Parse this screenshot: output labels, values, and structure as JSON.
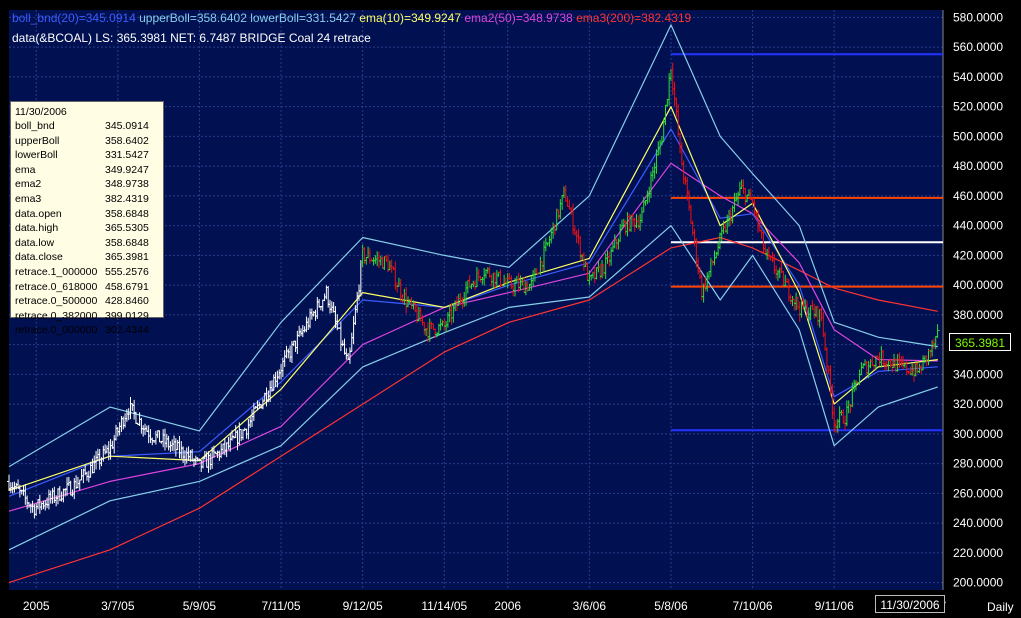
{
  "header": {
    "line1": [
      {
        "text": "boll_bnd(20)=345.0914",
        "color": "#3b5bff"
      },
      {
        "text": " upperBoll=358.6402",
        "color": "#87ceeb"
      },
      {
        "text": " lowerBoll=331.5427",
        "color": "#87ceeb"
      },
      {
        "text": " ema(10)=349.9247",
        "color": "#ffff66"
      },
      {
        "text": " ema2(50)=348.9738",
        "color": "#dd44dd"
      },
      {
        "text": " ema3(200)=382.4319",
        "color": "#ff3333"
      }
    ],
    "line2": "data(&BCOAL) LS: 365.3981  NET: 6.7487   BRIDGE Coal          24 retrace"
  },
  "tooltip": {
    "date": "11/30/2006",
    "rows": [
      {
        "k": "boll_bnd",
        "v": "345.0914"
      },
      {
        "k": "upperBoll",
        "v": "358.6402"
      },
      {
        "k": "lowerBoll",
        "v": "331.5427"
      },
      {
        "k": "ema",
        "v": "349.9247"
      },
      {
        "k": "ema2",
        "v": "348.9738"
      },
      {
        "k": "ema3",
        "v": "382.4319"
      },
      {
        "k": "data.open",
        "v": "358.6848"
      },
      {
        "k": "data.high",
        "v": "365.5305"
      },
      {
        "k": "data.low",
        "v": "358.6848"
      },
      {
        "k": "data.close",
        "v": "365.3981"
      },
      {
        "k": "retrace.1_000000",
        "v": "555.2576"
      },
      {
        "k": "retrace.0_618000",
        "v": "458.6791"
      },
      {
        "k": "retrace.0_500000",
        "v": "428.8460"
      },
      {
        "k": "retrace.0_382000",
        "v": "399.0129"
      },
      {
        "k": "retrace.0_000000",
        "v": "302.4344"
      }
    ]
  },
  "last_value": "365.3981",
  "cursor_date": "11/30/2006",
  "period_label": "Daily",
  "colors": {
    "background": "#000000",
    "plot_background": "#001050",
    "grid": "#2a3c8a",
    "bars_up": "#33dd33",
    "bars_down": "#ee1111",
    "bars_early": "#ffffff",
    "boll_mid": "#3b5bff",
    "boll_bands": "#87ceeb",
    "ema10": "#ffff66",
    "ema50": "#dd44dd",
    "ema200": "#ff3333",
    "retrace_extremes": "#2233ff",
    "retrace_mid": "#ffffff",
    "retrace_fib": "#ff4400"
  },
  "chart_data": {
    "type": "line",
    "title": "",
    "xlabel": "",
    "ylabel": "",
    "ylim": [
      195,
      585
    ],
    "grid": true,
    "y_ticks": [
      "580.0000",
      "560.0000",
      "540.0000",
      "520.0000",
      "500.0000",
      "480.0000",
      "460.0000",
      "440.0000",
      "420.0000",
      "400.0000",
      "380.0000",
      "360.0000",
      "340.0000",
      "320.0000",
      "300.0000",
      "280.0000",
      "260.0000",
      "240.0000",
      "220.0000",
      "200.0000"
    ],
    "x_ticks": [
      "2005",
      "3/7/05",
      "5/9/05",
      "7/11/05",
      "9/12/05",
      "11/14/05",
      "2006",
      "3/6/06",
      "5/8/06",
      "7/10/06",
      "9/11/06"
    ],
    "retracement_levels": [
      {
        "name": "retrace.1_000000",
        "value": 555.2576
      },
      {
        "name": "retrace.0_618000",
        "value": 458.6791
      },
      {
        "name": "retrace.0_500000",
        "value": 428.846
      },
      {
        "name": "retrace.0_382000",
        "value": 399.0129
      },
      {
        "name": "retrace.0_000000",
        "value": 302.4344
      }
    ],
    "series": [
      {
        "name": "data",
        "x": [
          "12/13/04",
          "1/1/05",
          "2/1/05",
          "3/1/05",
          "3/15/05",
          "4/1/05",
          "5/1/05",
          "5/9/05",
          "6/1/05",
          "6/15/05",
          "7/11/05",
          "8/1/05",
          "8/15/05",
          "9/1/05",
          "9/12/05",
          "10/1/05",
          "10/15/05",
          "11/1/05",
          "11/14/05",
          "12/1/05",
          "12/15/05",
          "1/3/06",
          "1/20/06",
          "2/1/06",
          "2/15/06",
          "3/6/06",
          "3/20/06",
          "4/1/06",
          "4/15/06",
          "5/1/06",
          "5/8/06",
          "5/15/06",
          "6/1/06",
          "6/15/06",
          "7/1/06",
          "7/10/06",
          "7/20/06",
          "8/1/06",
          "8/15/06",
          "9/1/06",
          "9/11/06",
          "9/20/06",
          "10/1/06",
          "10/15/06",
          "11/1/06",
          "11/15/06",
          "11/30/06"
        ],
        "values": [
          268,
          250,
          265,
          290,
          318,
          300,
          285,
          278,
          292,
          305,
          345,
          375,
          395,
          345,
          420,
          415,
          390,
          370,
          372,
          398,
          410,
          400,
          400,
          425,
          462,
          402,
          415,
          440,
          445,
          500,
          548,
          490,
          395,
          430,
          465,
          455,
          420,
          405,
          385,
          380,
          308,
          312,
          342,
          352,
          345,
          342,
          365
        ]
      },
      {
        "name": "ema(10)",
        "x": [
          "12/13/04",
          "3/1/05",
          "5/9/05",
          "7/11/05",
          "9/12/05",
          "11/14/05",
          "1/3/06",
          "3/6/06",
          "5/8/06",
          "6/15/06",
          "7/10/06",
          "8/15/06",
          "9/11/06",
          "10/15/06",
          "11/30/06"
        ],
        "values": [
          262,
          285,
          282,
          330,
          395,
          385,
          402,
          418,
          520,
          440,
          455,
          395,
          320,
          345,
          349.9247
        ]
      },
      {
        "name": "ema2(50)",
        "x": [
          "12/13/04",
          "3/1/05",
          "5/9/05",
          "7/11/05",
          "9/12/05",
          "11/14/05",
          "1/3/06",
          "3/6/06",
          "5/8/06",
          "6/15/06",
          "7/10/06",
          "8/15/06",
          "9/11/06",
          "10/15/06",
          "11/30/06"
        ],
        "values": [
          248,
          268,
          280,
          305,
          360,
          385,
          395,
          408,
          482,
          460,
          448,
          415,
          370,
          350,
          348.9738
        ]
      },
      {
        "name": "ema3(200)",
        "x": [
          "12/13/04",
          "3/1/05",
          "5/9/05",
          "7/11/05",
          "9/12/05",
          "11/14/05",
          "1/3/06",
          "3/6/06",
          "5/8/06",
          "6/15/06",
          "7/10/06",
          "8/15/06",
          "9/11/06",
          "10/15/06",
          "11/30/06"
        ],
        "values": [
          200,
          222,
          250,
          285,
          320,
          355,
          375,
          390,
          425,
          432,
          425,
          410,
          398,
          390,
          382.4319
        ]
      },
      {
        "name": "boll_bnd(20)",
        "x": [
          "12/13/04",
          "3/1/05",
          "5/9/05",
          "7/11/05",
          "9/12/05",
          "11/14/05",
          "1/3/06",
          "3/6/06",
          "5/8/06",
          "6/15/06",
          "7/10/06",
          "8/15/06",
          "9/11/06",
          "10/15/06",
          "11/30/06"
        ],
        "values": [
          258,
          285,
          288,
          335,
          390,
          385,
          400,
          415,
          505,
          445,
          448,
          400,
          325,
          342,
          345.0914
        ]
      },
      {
        "name": "upperBoll",
        "x": [
          "12/13/04",
          "3/1/05",
          "5/9/05",
          "7/11/05",
          "9/12/05",
          "11/14/05",
          "1/3/06",
          "3/6/06",
          "5/8/06",
          "6/15/06",
          "7/10/06",
          "8/15/06",
          "9/11/06",
          "10/15/06",
          "11/30/06"
        ],
        "values": [
          278,
          318,
          302,
          375,
          432,
          420,
          412,
          460,
          575,
          500,
          475,
          440,
          375,
          365,
          358.6402
        ]
      },
      {
        "name": "lowerBoll",
        "x": [
          "12/13/04",
          "3/1/05",
          "5/9/05",
          "7/11/05",
          "9/12/05",
          "11/14/05",
          "1/3/06",
          "3/6/06",
          "5/8/06",
          "6/15/06",
          "7/10/06",
          "8/15/06",
          "9/11/06",
          "10/15/06",
          "11/30/06"
        ],
        "values": [
          222,
          255,
          268,
          292,
          345,
          368,
          385,
          392,
          440,
          390,
          420,
          370,
          292,
          318,
          331.5427
        ]
      }
    ]
  }
}
